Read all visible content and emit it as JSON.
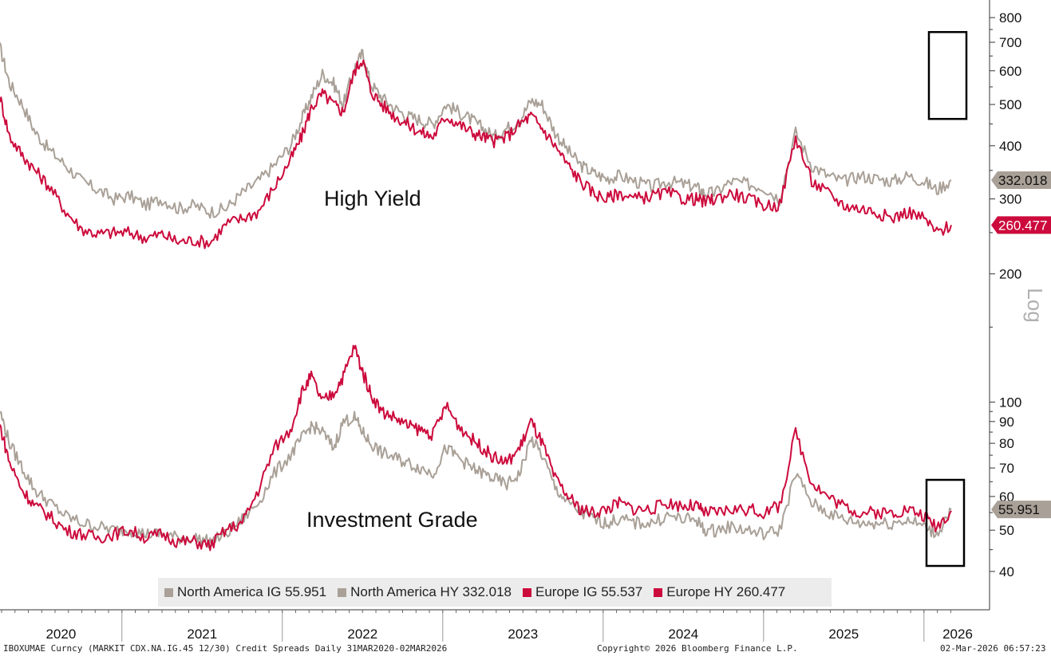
{
  "chart_data": {
    "type": "line",
    "yscale": "log",
    "yaxis_label": "Log",
    "ylim": [
      37,
      850
    ],
    "y_ticks": [
      40,
      50,
      60,
      70,
      80,
      90,
      100,
      200,
      300,
      400,
      500,
      600,
      700,
      800
    ],
    "x_ticks": [
      "2020",
      "2021",
      "2022",
      "2023",
      "2024",
      "2025",
      "2026"
    ],
    "xlim": [
      2020.24,
      2026.17
    ],
    "colors": {
      "north_america": "#a9a097",
      "europe": "#cc0a3c",
      "box": "#000000"
    },
    "annotations": [
      "High Yield",
      "Investment Grade"
    ],
    "series": [
      {
        "name": "North America HY",
        "last": "332.018",
        "x": [
          2020.24,
          2020.3,
          2020.38,
          2020.46,
          2020.55,
          2020.65,
          2020.75,
          2020.85,
          2020.95,
          2021.05,
          2021.15,
          2021.25,
          2021.35,
          2021.45,
          2021.55,
          2021.65,
          2021.75,
          2021.85,
          2021.95,
          2022.05,
          2022.12,
          2022.18,
          2022.25,
          2022.32,
          2022.38,
          2022.45,
          2022.5,
          2022.55,
          2022.62,
          2022.7,
          2022.78,
          2022.86,
          2022.94,
          2023.02,
          2023.1,
          2023.18,
          2023.25,
          2023.32,
          2023.4,
          2023.48,
          2023.55,
          2023.62,
          2023.7,
          2023.78,
          2023.86,
          2023.94,
          2024.02,
          2024.1,
          2024.2,
          2024.3,
          2024.4,
          2024.5,
          2024.58,
          2024.63,
          2024.7,
          2024.8,
          2024.9,
          2025.0,
          2025.1,
          2025.2,
          2025.3,
          2025.4,
          2025.5,
          2025.6,
          2025.7,
          2025.8,
          2025.9,
          2026.0,
          2026.08,
          2026.17
        ],
        "y": [
          680,
          560,
          500,
          430,
          390,
          360,
          330,
          315,
          300,
          305,
          290,
          300,
          285,
          290,
          280,
          285,
          310,
          330,
          360,
          400,
          460,
          520,
          590,
          560,
          500,
          610,
          660,
          560,
          520,
          490,
          470,
          460,
          450,
          500,
          480,
          460,
          440,
          420,
          440,
          460,
          510,
          500,
          430,
          390,
          360,
          345,
          335,
          340,
          330,
          320,
          330,
          325,
          320,
          310,
          310,
          330,
          325,
          320,
          300,
          430,
          360,
          340,
          330,
          340,
          335,
          330,
          340,
          330,
          315,
          332
        ]
      },
      {
        "name": "Europe HY",
        "last": "260.477",
        "x": [
          2020.24,
          2020.3,
          2020.38,
          2020.46,
          2020.55,
          2020.65,
          2020.75,
          2020.85,
          2020.95,
          2021.05,
          2021.15,
          2021.25,
          2021.35,
          2021.45,
          2021.55,
          2021.65,
          2021.75,
          2021.85,
          2021.95,
          2022.05,
          2022.12,
          2022.18,
          2022.25,
          2022.32,
          2022.38,
          2022.45,
          2022.5,
          2022.55,
          2022.62,
          2022.7,
          2022.78,
          2022.86,
          2022.94,
          2023.02,
          2023.1,
          2023.18,
          2023.25,
          2023.32,
          2023.4,
          2023.48,
          2023.55,
          2023.62,
          2023.7,
          2023.78,
          2023.86,
          2023.94,
          2024.02,
          2024.1,
          2024.2,
          2024.3,
          2024.4,
          2024.5,
          2024.58,
          2024.63,
          2024.7,
          2024.8,
          2024.9,
          2025.0,
          2025.1,
          2025.2,
          2025.3,
          2025.4,
          2025.5,
          2025.6,
          2025.7,
          2025.8,
          2025.9,
          2026.0,
          2026.08,
          2026.17
        ],
        "y": [
          520,
          420,
          380,
          350,
          320,
          280,
          255,
          248,
          250,
          250,
          243,
          248,
          238,
          240,
          237,
          262,
          270,
          280,
          320,
          370,
          420,
          490,
          530,
          500,
          480,
          600,
          640,
          540,
          500,
          470,
          450,
          430,
          420,
          470,
          450,
          430,
          420,
          410,
          420,
          450,
          470,
          440,
          400,
          360,
          330,
          310,
          300,
          310,
          300,
          305,
          310,
          300,
          300,
          295,
          300,
          310,
          300,
          290,
          290,
          420,
          330,
          310,
          290,
          285,
          280,
          270,
          280,
          270,
          250,
          260.477
        ]
      },
      {
        "name": "North America IG",
        "last": "55.951",
        "x": [
          2020.24,
          2020.3,
          2020.38,
          2020.46,
          2020.55,
          2020.65,
          2020.75,
          2020.85,
          2020.95,
          2021.05,
          2021.15,
          2021.25,
          2021.35,
          2021.45,
          2021.55,
          2021.65,
          2021.75,
          2021.85,
          2021.95,
          2022.05,
          2022.12,
          2022.18,
          2022.25,
          2022.32,
          2022.38,
          2022.45,
          2022.5,
          2022.55,
          2022.62,
          2022.7,
          2022.78,
          2022.86,
          2022.94,
          2023.02,
          2023.1,
          2023.18,
          2023.25,
          2023.32,
          2023.4,
          2023.48,
          2023.55,
          2023.62,
          2023.7,
          2023.78,
          2023.86,
          2023.94,
          2024.02,
          2024.1,
          2024.2,
          2024.3,
          2024.4,
          2024.5,
          2024.58,
          2024.63,
          2024.7,
          2024.8,
          2024.9,
          2025.0,
          2025.1,
          2025.2,
          2025.3,
          2025.4,
          2025.5,
          2025.6,
          2025.7,
          2025.8,
          2025.9,
          2026.0,
          2026.08,
          2026.17
        ],
        "y": [
          95,
          80,
          70,
          62,
          58,
          54,
          52,
          51,
          50,
          50,
          49,
          49,
          48,
          48,
          47,
          49,
          53,
          58,
          68,
          75,
          82,
          88,
          85,
          78,
          90,
          92,
          85,
          80,
          76,
          74,
          72,
          70,
          68,
          78,
          74,
          70,
          68,
          66,
          64,
          68,
          82,
          75,
          63,
          58,
          55,
          53,
          52,
          53,
          52,
          52,
          54,
          53,
          53,
          50,
          50,
          51,
          50,
          49,
          50,
          68,
          58,
          55,
          53,
          52,
          52,
          52,
          53,
          51,
          49,
          55.951
        ]
      },
      {
        "name": "Europe IG",
        "last": "55.537",
        "x": [
          2020.24,
          2020.3,
          2020.38,
          2020.46,
          2020.55,
          2020.65,
          2020.75,
          2020.85,
          2020.95,
          2021.05,
          2021.15,
          2021.25,
          2021.35,
          2021.45,
          2021.55,
          2021.65,
          2021.75,
          2021.85,
          2021.95,
          2022.05,
          2022.12,
          2022.18,
          2022.25,
          2022.32,
          2022.38,
          2022.45,
          2022.5,
          2022.55,
          2022.62,
          2022.7,
          2022.78,
          2022.86,
          2022.94,
          2023.02,
          2023.1,
          2023.18,
          2023.25,
          2023.32,
          2023.4,
          2023.48,
          2023.55,
          2023.62,
          2023.7,
          2023.78,
          2023.86,
          2023.94,
          2024.02,
          2024.1,
          2024.2,
          2024.3,
          2024.4,
          2024.5,
          2024.58,
          2024.63,
          2024.7,
          2024.8,
          2024.9,
          2025.0,
          2025.1,
          2025.2,
          2025.3,
          2025.4,
          2025.5,
          2025.6,
          2025.7,
          2025.8,
          2025.9,
          2026.0,
          2026.08,
          2026.17
        ],
        "y": [
          88,
          72,
          62,
          57,
          54,
          50,
          49,
          48,
          49,
          50,
          48,
          49,
          47,
          47,
          46,
          50,
          52,
          62,
          78,
          86,
          105,
          115,
          100,
          105,
          115,
          135,
          118,
          105,
          95,
          92,
          88,
          86,
          84,
          98,
          88,
          82,
          78,
          74,
          72,
          78,
          90,
          80,
          66,
          60,
          56,
          55,
          56,
          58,
          56,
          56,
          58,
          57,
          57,
          55,
          55,
          56,
          56,
          55,
          57,
          85,
          65,
          60,
          57,
          55,
          55,
          55,
          56,
          54,
          51,
          55.537
        ]
      }
    ],
    "value_tags": [
      {
        "series": "North America HY",
        "text": "332.018",
        "value": 332.018,
        "bg": "#a9a097"
      },
      {
        "series": "Europe HY",
        "text": "260.477",
        "value": 260.477,
        "bg": "#cc0a3c"
      },
      {
        "series": "North America IG",
        "text": "55.951",
        "value": 55.951,
        "bg": "#a9a097"
      }
    ]
  },
  "legend": [
    {
      "label": "North America IG 55.951",
      "color": "#a9a097"
    },
    {
      "label": "North America HY 332.018",
      "color": "#a9a097"
    },
    {
      "label": "Europe IG 55.537",
      "color": "#cc0a3c"
    },
    {
      "label": "Europe HY 260.477",
      "color": "#cc0a3c"
    }
  ],
  "footer": {
    "left": "IBOXUMAE Curncy (MARKIT CDX.NA.IG.45 12/30) Credit Spreads Daily 31MAR2020-02MAR2026",
    "center": "Copyright© 2026 Bloomberg Finance L.P.",
    "right": "02-Mar-2026 06:57:23"
  }
}
